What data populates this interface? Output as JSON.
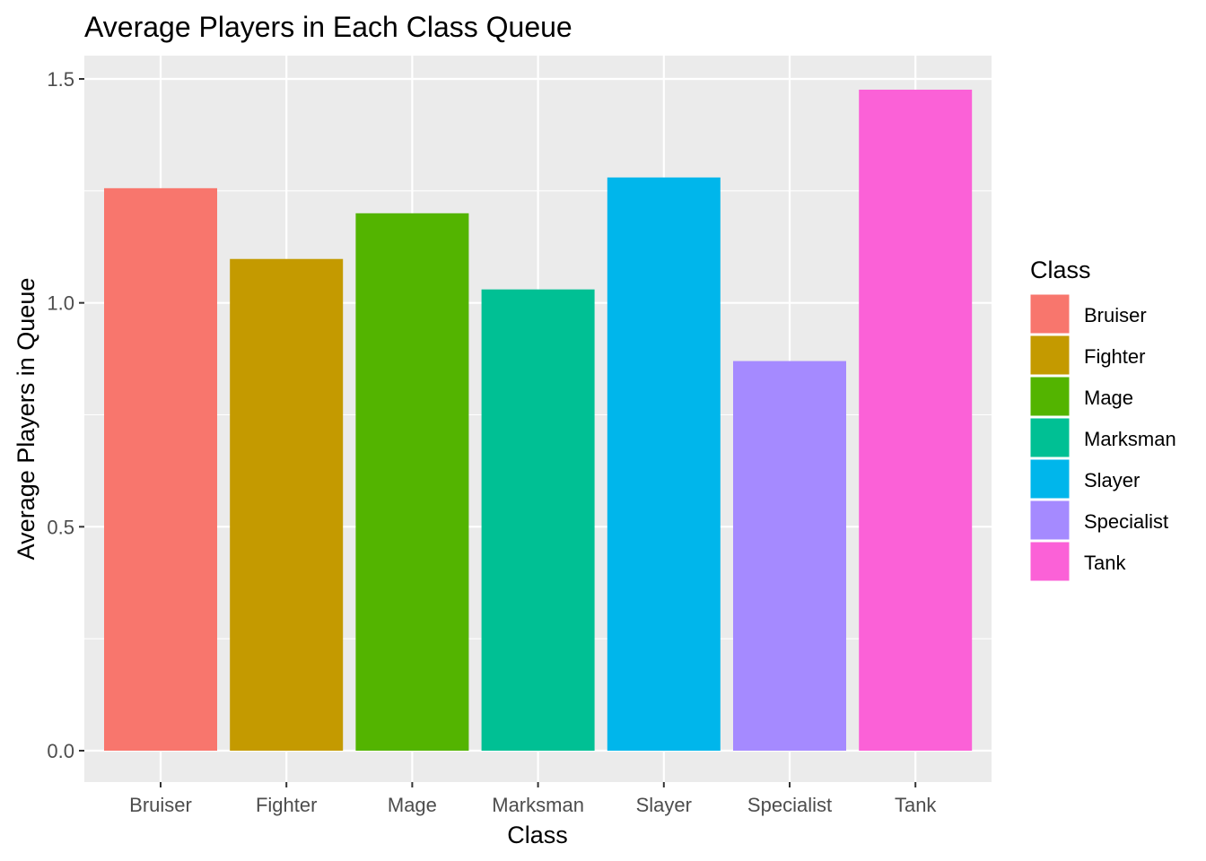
{
  "chart_data": {
    "type": "bar",
    "title": "Average Players in Each Class Queue",
    "xlabel": "Class",
    "ylabel": "Average Players in Queue",
    "categories": [
      "Bruiser",
      "Fighter",
      "Mage",
      "Marksman",
      "Slayer",
      "Specialist",
      "Tank"
    ],
    "values": [
      1.256,
      1.098,
      1.2,
      1.03,
      1.28,
      0.87,
      1.476
    ],
    "colors": [
      "#F8766D",
      "#C49A00",
      "#53B400",
      "#00C094",
      "#00B6EB",
      "#A58AFF",
      "#FB61D7"
    ],
    "ylim": [
      -0.065,
      1.5
    ],
    "y_ticks": [
      0.0,
      0.5,
      1.0,
      1.5
    ],
    "y_tick_labels": [
      "0.0",
      "0.5",
      "1.0",
      "1.5"
    ],
    "grid": true,
    "panel_background": "#EBEBEB",
    "legend": {
      "title": "Class",
      "position": "right",
      "entries": [
        "Bruiser",
        "Fighter",
        "Mage",
        "Marksman",
        "Slayer",
        "Specialist",
        "Tank"
      ]
    }
  }
}
